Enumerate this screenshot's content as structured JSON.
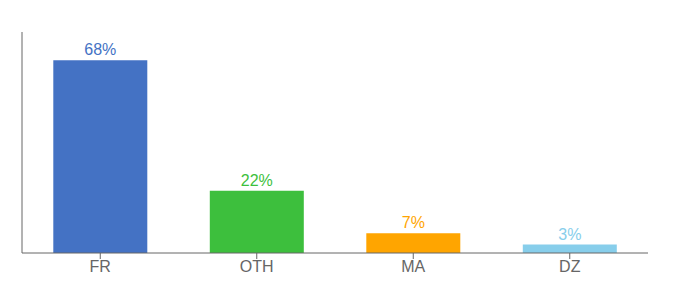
{
  "chart_data": {
    "type": "bar",
    "categories": [
      "FR",
      "OTH",
      "MA",
      "DZ"
    ],
    "values": [
      68,
      22,
      7,
      3
    ],
    "value_labels": [
      "68%",
      "22%",
      "7%",
      "3%"
    ],
    "colors": [
      "#4472C4",
      "#3DBF3D",
      "#FFA500",
      "#87CEEB"
    ],
    "ylim": [
      0,
      78
    ],
    "data_labels": true,
    "tick_labels": "x"
  }
}
